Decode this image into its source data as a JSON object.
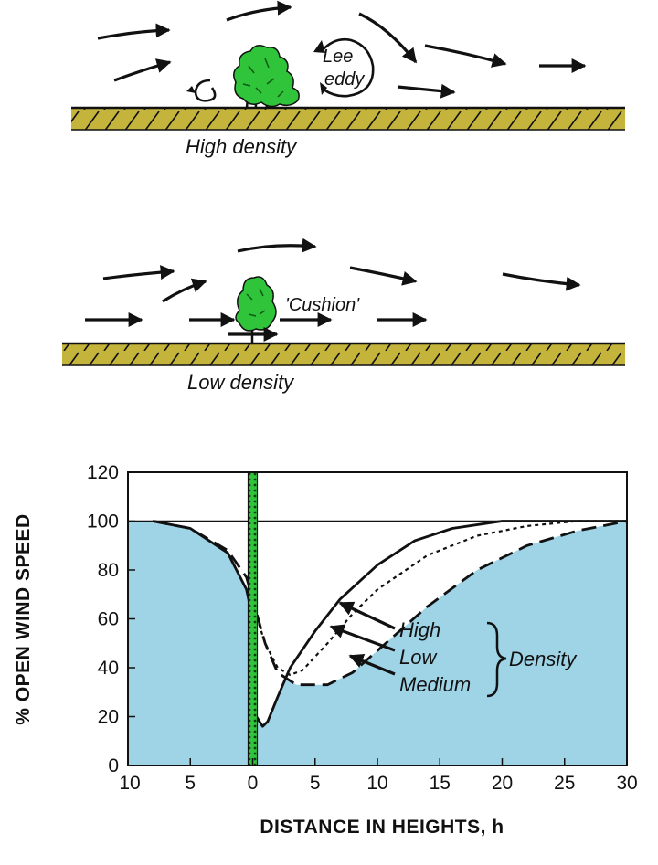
{
  "top_diagram": {
    "caption": "High density",
    "eddy_label_line1": "Lee",
    "eddy_label_line2": "eddy"
  },
  "middle_diagram": {
    "caption": "Low density",
    "cushion_label": "'Cushion'"
  },
  "colors": {
    "ground": "#c4b43c",
    "tree": "#2fc43a",
    "fill": "#9fd3e6",
    "line": "#111111"
  },
  "chart_data": {
    "type": "line",
    "xlabel": "DISTANCE IN HEIGHTS, h",
    "ylabel": "% OPEN WIND SPEED",
    "x_tick_labels": [
      "10",
      "5",
      "0",
      "5",
      "10",
      "15",
      "20",
      "25",
      "30"
    ],
    "x_ticks": [
      -10,
      -5,
      0,
      5,
      10,
      15,
      20,
      25,
      30
    ],
    "y_ticks": [
      0,
      20,
      40,
      60,
      80,
      100,
      120
    ],
    "xlim": [
      -10,
      30
    ],
    "ylim": [
      0,
      120
    ],
    "reference_line": 100,
    "legend_group_label": "Density",
    "series": [
      {
        "name": "High",
        "style": "solid",
        "points": [
          [
            -8,
            100
          ],
          [
            -5,
            97
          ],
          [
            -2,
            87
          ],
          [
            -0.5,
            72
          ],
          [
            0,
            60
          ],
          [
            0.3,
            20
          ],
          [
            0.8,
            16
          ],
          [
            1.2,
            18
          ],
          [
            2,
            28
          ],
          [
            3,
            40
          ],
          [
            5,
            55
          ],
          [
            7,
            68
          ],
          [
            10,
            82
          ],
          [
            13,
            92
          ],
          [
            16,
            97
          ],
          [
            20,
            100
          ],
          [
            30,
            100
          ]
        ]
      },
      {
        "name": "Low",
        "style": "dotted",
        "points": [
          [
            -8,
            100
          ],
          [
            -5,
            97
          ],
          [
            -2,
            87
          ],
          [
            -0.5,
            72
          ],
          [
            0,
            66
          ],
          [
            1,
            50
          ],
          [
            2,
            40
          ],
          [
            3,
            37
          ],
          [
            4,
            39
          ],
          [
            6,
            50
          ],
          [
            8,
            62
          ],
          [
            10,
            72
          ],
          [
            14,
            86
          ],
          [
            18,
            94
          ],
          [
            22,
            98
          ],
          [
            26,
            100
          ],
          [
            30,
            100
          ]
        ]
      },
      {
        "name": "Medium",
        "style": "dashed",
        "points": [
          [
            -8,
            100
          ],
          [
            -5,
            97
          ],
          [
            -2,
            88
          ],
          [
            -0.5,
            77
          ],
          [
            0,
            68
          ],
          [
            1,
            50
          ],
          [
            2,
            38
          ],
          [
            3.5,
            33
          ],
          [
            6,
            33
          ],
          [
            8,
            38
          ],
          [
            10,
            47
          ],
          [
            14,
            65
          ],
          [
            18,
            80
          ],
          [
            22,
            90
          ],
          [
            26,
            96
          ],
          [
            30,
            100
          ]
        ]
      }
    ]
  }
}
